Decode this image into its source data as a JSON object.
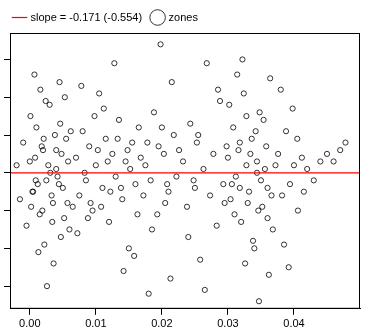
{
  "chart_data": {
    "type": "scatter",
    "xlim": [
      -0.003,
      0.05
    ],
    "xticks": [
      {
        "value": 0,
        "label": "0.00"
      },
      {
        "value": 0.01,
        "label": "0.01"
      },
      {
        "value": 0.02,
        "label": "0.02"
      },
      {
        "value": 0.03,
        "label": "0.03"
      },
      {
        "value": 0.04,
        "label": "0.04"
      }
    ],
    "ylim": [
      -3.6,
      3.7
    ],
    "yticks": [
      -3,
      -2,
      -1,
      0,
      1,
      2,
      3
    ],
    "tick_labels": "x",
    "grid": false,
    "legend": "top-left",
    "series": [
      {
        "name": "zones",
        "type": "scatter",
        "marker": "circle",
        "color": "#000000",
        "x": [
          0.0,
          0.0005,
          0.001,
          0.0015,
          0.002,
          0.0025,
          0.003,
          0.0035,
          0.004,
          0.0045,
          0.005,
          0.0055,
          0.006,
          0.0002,
          0.0008,
          0.0012,
          0.0018,
          0.0022,
          0.0028,
          0.0033,
          0.0038,
          0.0042,
          0.0048,
          0.0052,
          0.0058,
          -0.002,
          -0.0015,
          -0.001,
          -0.0005,
          0.0001,
          0.0013,
          0.0024,
          0.0036,
          0.0046,
          0.0057,
          0.0007,
          0.0019,
          0.0031,
          0.0044,
          0.0062,
          0.0026,
          0.0016,
          0.004,
          0.0009,
          0.0053,
          0.0034,
          0.0021,
          0.0047,
          0.0004,
          0.0065,
          0.007,
          0.0075,
          0.008,
          0.0085,
          0.009,
          0.0095,
          0.01,
          0.0105,
          0.011,
          0.0115,
          0.012,
          0.0125,
          0.013,
          0.0135,
          0.014,
          0.0145,
          0.015,
          0.0155,
          0.016,
          0.0165,
          0.0072,
          0.0083,
          0.0092,
          0.0103,
          0.0112,
          0.0122,
          0.0133,
          0.0142,
          0.0152,
          0.0163,
          0.0078,
          0.0088,
          0.0098,
          0.0108,
          0.0118,
          0.0128,
          0.0138,
          0.0148,
          0.0158,
          0.0168,
          0.0172,
          0.0178,
          0.0183,
          0.0188,
          0.0193,
          0.0198,
          0.0203,
          0.0208,
          0.0213,
          0.0218,
          0.0175,
          0.0185,
          0.0195,
          0.0205,
          0.0215,
          0.0222,
          0.0226,
          0.018,
          0.02,
          0.021,
          0.0232,
          0.0238,
          0.0243,
          0.0248,
          0.0253,
          0.0258,
          0.0263,
          0.0268,
          0.0273,
          0.0278,
          0.0283,
          0.0288,
          0.0293,
          0.0298,
          0.024,
          0.0255,
          0.0265,
          0.0285,
          0.0295,
          0.025,
          0.03,
          0.0304,
          0.0308,
          0.0312,
          0.0316,
          0.032,
          0.0324,
          0.0328,
          0.0332,
          0.0336,
          0.034,
          0.0344,
          0.0348,
          0.0352,
          0.0356,
          0.036,
          0.0364,
          0.0368,
          0.0302,
          0.031,
          0.0318,
          0.0326,
          0.0334,
          0.0342,
          0.035,
          0.0358,
          0.0366,
          0.0306,
          0.0322,
          0.0338,
          0.0314,
          0.033,
          0.0346,
          0.0354,
          0.0362,
          0.0372,
          0.0328,
          0.0344,
          0.036,
          0.0318,
          0.0376,
          0.0382,
          0.0388,
          0.0394,
          0.04,
          0.0406,
          0.0412,
          0.042,
          0.043,
          0.044,
          0.045,
          0.046,
          0.047,
          0.0478,
          0.0385,
          0.0398,
          0.0415,
          0.038,
          0.0392,
          0.0405,
          0.0347
        ],
        "values": [
          0.3,
          -0.5,
          1.2,
          -1.1,
          0.6,
          -0.2,
          1.8,
          -0.8,
          0.1,
          2.4,
          -0.4,
          0.9,
          -1.5,
          -0.9,
          0.4,
          -0.3,
          0.7,
          -1.9,
          0.2,
          -0.6,
          1.0,
          -0.1,
          0.5,
          -1.2,
          0.3,
          0.2,
          -0.7,
          0.8,
          -1.4,
          1.5,
          -2.1,
          1.9,
          -2.4,
          1.3,
          -0.8,
          2.6,
          -1.0,
          0.0,
          -0.3,
          1.1,
          -3.0,
          2.2,
          0.6,
          -0.2,
          2.0,
          -1.3,
          0.9,
          -1.7,
          -0.5,
          -0.9,
          0.4,
          -0.6,
          1.1,
          -0.2,
          0.7,
          -1.0,
          0.2,
          2.1,
          -0.4,
          0.9,
          -1.3,
          0.5,
          -0.1,
          1.4,
          -0.7,
          0.3,
          -2.0,
          0.8,
          -0.3,
          1.2,
          -1.6,
          0.0,
          -0.8,
          0.6,
          1.7,
          -0.5,
          0.9,
          -2.6,
          0.1,
          -1.1,
          2.3,
          -1.2,
          1.5,
          -0.9,
          0.3,
          2.9,
          -0.4,
          0.6,
          -2.2,
          0.4,
          -0.6,
          0.8,
          -0.2,
          1.6,
          -1.1,
          3.4,
          0.5,
          -0.3,
          -2.8,
          1.0,
          0.2,
          -1.5,
          0.7,
          -0.8,
          2.4,
          -0.1,
          0.6,
          -3.2,
          1.2,
          -0.5,
          0.3,
          -0.9,
          1.3,
          -0.2,
          0.8,
          -2.3,
          0.1,
          2.9,
          -0.6,
          0.5,
          -1.4,
          1.9,
          -0.3,
          0.7,
          -1.7,
          1.0,
          -3.1,
          2.2,
          -0.8,
          -0.4,
          0.4,
          -0.7,
          1.2,
          -0.1,
          0.6,
          -1.3,
          2.1,
          0.2,
          -0.5,
          0.9,
          -2.0,
          0.3,
          1.6,
          -0.9,
          0.1,
          -0.4,
          2.5,
          -1.5,
          1.8,
          -1.1,
          0.8,
          -2.4,
          0.5,
          1.1,
          -0.2,
          0.7,
          -0.6,
          -0.3,
          3.0,
          -1.8,
          2.6,
          -0.8,
          -1.0,
          1.4,
          -2.7,
          0.2,
          1.5,
          0.0,
          -1.2,
          -0.4,
          0.5,
          -0.6,
          1.1,
          -0.3,
          0.2,
          -1.0,
          0.4,
          0.1,
          -0.2,
          0.3,
          0.5,
          0.3,
          0.6,
          0.8,
          -1.9,
          1.7,
          -0.5,
          2.2,
          -2.5,
          0.9,
          -3.4
        ]
      },
      {
        "name": "slope = -0.171 (-0.554)",
        "type": "line",
        "line_style": "solid",
        "color": "#ff0000",
        "x": [
          -0.003,
          0.05
        ],
        "values": [
          0.0,
          0.0
        ]
      }
    ]
  }
}
